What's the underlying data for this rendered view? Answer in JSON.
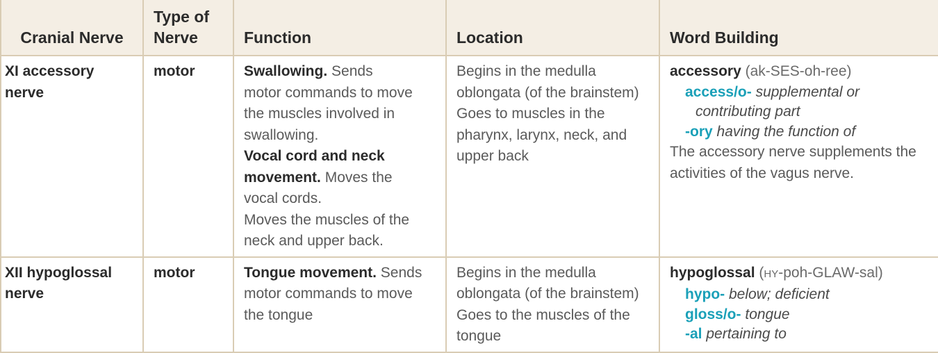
{
  "headers": {
    "cranial_nerve": "Cranial Nerve",
    "type_line1": "Type of",
    "type_line2": "Nerve",
    "function": "Function",
    "location": "Location",
    "word_building": "Word Building"
  },
  "rows": [
    {
      "nerve_line1": "XI accessory",
      "nerve_line2": "nerve",
      "type": "motor",
      "function": {
        "h1": "Swallowing.",
        "t1_first": " Sends",
        "t1_lines": [
          "motor commands to move",
          "the muscles involved in",
          "swallowing."
        ],
        "h2_line1": "Vocal cord and neck",
        "h2_line2": "movement.",
        "t2_first": " Moves the",
        "t2_lines": [
          "vocal cords.",
          "Moves the muscles of the",
          "neck and upper back."
        ]
      },
      "location_lines": [
        "Begins in the medulla",
        "oblongata (of the brainstem)",
        "Goes to muscles in the",
        "pharynx, larynx, neck, and",
        "upper back"
      ],
      "word": {
        "term": "accessory",
        "pron_pre": "(ak-SES-oh-ree)",
        "parts": [
          {
            "part": "access/o-",
            "meaning_line1": "supplemental or",
            "meaning_line2": "contributing part"
          },
          {
            "part": "-ory",
            "meaning_line1": "having the function of"
          }
        ],
        "note_lines": [
          "The accessory nerve supplements the",
          "activities of the vagus nerve."
        ]
      }
    },
    {
      "nerve_line1": "XII hypoglossal",
      "nerve_line2": "nerve",
      "type": "motor",
      "function": {
        "h1": "Tongue movement.",
        "t1_first": " Sends",
        "t1_lines": [
          "motor commands to move",
          "the tongue"
        ]
      },
      "location_lines": [
        "Begins in the medulla",
        "oblongata (of the brainstem)",
        "Goes to the muscles of the",
        "tongue"
      ],
      "word": {
        "term": "hypoglossal",
        "pron_open": "(",
        "pron_sc": "HY",
        "pron_rest": "-poh-GLAW-sal)",
        "parts": [
          {
            "part": "hypo-",
            "meaning_line1": "below; deficient"
          },
          {
            "part": "gloss/o-",
            "meaning_line1": "tongue"
          },
          {
            "part": "-al",
            "meaning_line1": "pertaining to"
          }
        ]
      }
    }
  ]
}
